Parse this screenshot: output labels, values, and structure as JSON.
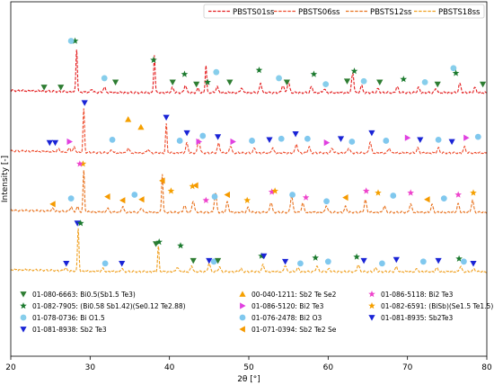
{
  "chart_data": {
    "type": "line",
    "xlabel": "2θ [°]",
    "ylabel": "Intensity [-]",
    "xlim": [
      20,
      80
    ],
    "xticks": [
      20,
      30,
      40,
      50,
      60,
      70,
      80
    ],
    "ytick_labels_shown": false,
    "grid": false,
    "legend_placement": "top-right",
    "phase_legend_placement": "bottom",
    "series": [
      {
        "name": "PBSTS01ss",
        "color": "#e31a1c",
        "peaks": [
          {
            "x": 28.3,
            "h": 0.85
          },
          {
            "x": 30.2,
            "h": 0.06
          },
          {
            "x": 31.8,
            "h": 0.1
          },
          {
            "x": 38.1,
            "h": 0.75
          },
          {
            "x": 40.4,
            "h": 0.1
          },
          {
            "x": 42.0,
            "h": 0.15
          },
          {
            "x": 43.6,
            "h": 0.08
          },
          {
            "x": 44.6,
            "h": 0.55
          },
          {
            "x": 46.0,
            "h": 0.12
          },
          {
            "x": 49.1,
            "h": 0.1
          },
          {
            "x": 51.5,
            "h": 0.18
          },
          {
            "x": 54.3,
            "h": 0.15
          },
          {
            "x": 55.0,
            "h": 0.22
          },
          {
            "x": 57.9,
            "h": 0.12
          },
          {
            "x": 59.5,
            "h": 0.08
          },
          {
            "x": 63.1,
            "h": 0.38
          },
          {
            "x": 64.2,
            "h": 0.14
          },
          {
            "x": 66.3,
            "h": 0.08
          },
          {
            "x": 68.7,
            "h": 0.12
          },
          {
            "x": 71.4,
            "h": 0.1
          },
          {
            "x": 73.6,
            "h": 0.08
          },
          {
            "x": 76.6,
            "h": 0.18
          },
          {
            "x": 78.5,
            "h": 0.1
          }
        ]
      },
      {
        "name": "PBSTS06ss",
        "color": "#ee4a2b",
        "peaks": [
          {
            "x": 26.0,
            "h": 0.06
          },
          {
            "x": 27.4,
            "h": 0.08
          },
          {
            "x": 28.0,
            "h": 0.1
          },
          {
            "x": 29.2,
            "h": 0.9
          },
          {
            "x": 32.7,
            "h": 0.06
          },
          {
            "x": 34.8,
            "h": 0.1
          },
          {
            "x": 37.3,
            "h": 0.08
          },
          {
            "x": 39.6,
            "h": 0.6
          },
          {
            "x": 42.2,
            "h": 0.2
          },
          {
            "x": 43.7,
            "h": 0.28
          },
          {
            "x": 46.2,
            "h": 0.2
          },
          {
            "x": 47.7,
            "h": 0.15
          },
          {
            "x": 50.7,
            "h": 0.1
          },
          {
            "x": 53.0,
            "h": 0.1
          },
          {
            "x": 56.0,
            "h": 0.18
          },
          {
            "x": 57.6,
            "h": 0.12
          },
          {
            "x": 60.5,
            "h": 0.1
          },
          {
            "x": 62.6,
            "h": 0.1
          },
          {
            "x": 65.3,
            "h": 0.22
          },
          {
            "x": 67.7,
            "h": 0.1
          },
          {
            "x": 71.3,
            "h": 0.1
          },
          {
            "x": 73.9,
            "h": 0.1
          },
          {
            "x": 77.2,
            "h": 0.12
          }
        ]
      },
      {
        "name": "PBSTS12ss",
        "color": "#e8711c",
        "peaks": [
          {
            "x": 25.3,
            "h": 0.06
          },
          {
            "x": 27.6,
            "h": 0.1
          },
          {
            "x": 28.4,
            "h": 0.1
          },
          {
            "x": 29.2,
            "h": 0.88
          },
          {
            "x": 32.2,
            "h": 0.08
          },
          {
            "x": 34.1,
            "h": 0.12
          },
          {
            "x": 36.5,
            "h": 0.1
          },
          {
            "x": 39.1,
            "h": 0.82
          },
          {
            "x": 41.9,
            "h": 0.15
          },
          {
            "x": 43.0,
            "h": 0.25
          },
          {
            "x": 45.8,
            "h": 0.42
          },
          {
            "x": 47.3,
            "h": 0.22
          },
          {
            "x": 49.9,
            "h": 0.1
          },
          {
            "x": 52.8,
            "h": 0.22
          },
          {
            "x": 55.4,
            "h": 0.36
          },
          {
            "x": 56.8,
            "h": 0.2
          },
          {
            "x": 59.8,
            "h": 0.14
          },
          {
            "x": 62.2,
            "h": 0.12
          },
          {
            "x": 64.7,
            "h": 0.26
          },
          {
            "x": 67.1,
            "h": 0.14
          },
          {
            "x": 70.4,
            "h": 0.18
          },
          {
            "x": 73.1,
            "h": 0.16
          },
          {
            "x": 76.4,
            "h": 0.18
          },
          {
            "x": 78.2,
            "h": 0.25
          }
        ]
      },
      {
        "name": "PBSTS18ss",
        "color": "#f0a020",
        "peaks": [
          {
            "x": 26.9,
            "h": 0.06
          },
          {
            "x": 28.5,
            "h": 0.92
          },
          {
            "x": 31.6,
            "h": 0.06
          },
          {
            "x": 34.0,
            "h": 0.06
          },
          {
            "x": 38.6,
            "h": 0.55
          },
          {
            "x": 41.0,
            "h": 0.1
          },
          {
            "x": 42.8,
            "h": 0.12
          },
          {
            "x": 45.0,
            "h": 0.18
          },
          {
            "x": 46.3,
            "h": 0.1
          },
          {
            "x": 49.0,
            "h": 0.06
          },
          {
            "x": 51.8,
            "h": 0.15
          },
          {
            "x": 54.6,
            "h": 0.14
          },
          {
            "x": 56.2,
            "h": 0.08
          },
          {
            "x": 58.6,
            "h": 0.12
          },
          {
            "x": 60.1,
            "h": 0.06
          },
          {
            "x": 63.8,
            "h": 0.15
          },
          {
            "x": 66.0,
            "h": 0.08
          },
          {
            "x": 68.6,
            "h": 0.1
          },
          {
            "x": 71.2,
            "h": 0.06
          },
          {
            "x": 73.7,
            "h": 0.08
          },
          {
            "x": 76.7,
            "h": 0.12
          },
          {
            "x": 78.4,
            "h": 0.06
          }
        ]
      }
    ],
    "phases": [
      {
        "code": "01-080-6663: Bi0.5(Sb1.5 Te3)",
        "marker": "triangle-down",
        "color": "#2e7d32"
      },
      {
        "code": "01-082-7905: (Bi0.58 Sb1.42)(Se0.12 Te2.88)",
        "marker": "star",
        "color": "#1b7a2e"
      },
      {
        "code": "01-078-0736: Bi O1.5",
        "marker": "circle",
        "color": "#87ceeb"
      },
      {
        "code": "01-081-8938: Sb2 Te3",
        "marker": "triangle-down",
        "color": "#1a24d6"
      },
      {
        "code": "00-040-1211: Sb2 Te Se2",
        "marker": "triangle-up",
        "color": "#f5a000"
      },
      {
        "code": "01-086-5120: Bi2 Te3",
        "marker": "triangle-right",
        "color": "#e040e0"
      },
      {
        "code": "01-076-2478: Bi2 O3",
        "marker": "circle",
        "color": "#80c8ee"
      },
      {
        "code": "01-071-0394: Sb2 Te2 Se",
        "marker": "triangle-left",
        "color": "#f59a00"
      },
      {
        "code": "01-086-5118: Bi2 Te3",
        "marker": "star",
        "color": "#ee44cc"
      },
      {
        "code": "01-082-6591: (BiSb)(Se1.5 Te1.5)",
        "marker": "star",
        "color": "#f5a000"
      },
      {
        "code": "01-081-8935: Sb2Te3",
        "marker": "triangle-down",
        "color": "#1a24d6"
      }
    ],
    "markers": [
      [
        {
          "p": 0,
          "x": 24.2,
          "h": 0.0
        },
        {
          "p": 0,
          "x": 26.3,
          "h": 0.0
        },
        {
          "p": 1,
          "x": 28.1,
          "h": 0.92
        },
        {
          "p": 2,
          "x": 27.6,
          "h": 0.92
        },
        {
          "p": 2,
          "x": 31.8,
          "h": 0.18
        },
        {
          "p": 0,
          "x": 33.2,
          "h": 0.1
        },
        {
          "p": 1,
          "x": 38.0,
          "h": 0.54
        },
        {
          "p": 0,
          "x": 40.4,
          "h": 0.1
        },
        {
          "p": 1,
          "x": 41.9,
          "h": 0.26
        },
        {
          "p": 0,
          "x": 43.4,
          "h": 0.06
        },
        {
          "p": 1,
          "x": 44.8,
          "h": 0.1
        },
        {
          "p": 2,
          "x": 45.9,
          "h": 0.3
        },
        {
          "p": 0,
          "x": 47.6,
          "h": 0.1
        },
        {
          "p": 1,
          "x": 51.3,
          "h": 0.34
        },
        {
          "p": 2,
          "x": 53.8,
          "h": 0.18
        },
        {
          "p": 0,
          "x": 54.8,
          "h": 0.1
        },
        {
          "p": 1,
          "x": 58.2,
          "h": 0.26
        },
        {
          "p": 2,
          "x": 59.7,
          "h": 0.06
        },
        {
          "p": 0,
          "x": 62.4,
          "h": 0.12
        },
        {
          "p": 1,
          "x": 63.3,
          "h": 0.32
        },
        {
          "p": 2,
          "x": 64.5,
          "h": 0.12
        },
        {
          "p": 0,
          "x": 66.5,
          "h": 0.1
        },
        {
          "p": 1,
          "x": 69.5,
          "h": 0.16
        },
        {
          "p": 2,
          "x": 72.2,
          "h": 0.1
        },
        {
          "p": 0,
          "x": 73.8,
          "h": 0.06
        },
        {
          "p": 2,
          "x": 75.8,
          "h": 0.38
        },
        {
          "p": 1,
          "x": 76.1,
          "h": 0.28
        },
        {
          "p": 0,
          "x": 79.5,
          "h": 0.06
        }
      ],
      [
        {
          "p": 3,
          "x": 24.9,
          "h": 0.1
        },
        {
          "p": 3,
          "x": 25.6,
          "h": 0.1
        },
        {
          "p": 5,
          "x": 27.4,
          "h": 0.12
        },
        {
          "p": 3,
          "x": 29.3,
          "h": 0.92
        },
        {
          "p": 6,
          "x": 32.8,
          "h": 0.16
        },
        {
          "p": 4,
          "x": 34.8,
          "h": 0.58
        },
        {
          "p": 4,
          "x": 36.4,
          "h": 0.42
        },
        {
          "p": 3,
          "x": 39.6,
          "h": 0.62
        },
        {
          "p": 6,
          "x": 41.3,
          "h": 0.14
        },
        {
          "p": 3,
          "x": 42.2,
          "h": 0.3
        },
        {
          "p": 5,
          "x": 43.7,
          "h": 0.12
        },
        {
          "p": 6,
          "x": 44.2,
          "h": 0.24
        },
        {
          "p": 3,
          "x": 46.1,
          "h": 0.22
        },
        {
          "p": 5,
          "x": 48.0,
          "h": 0.12
        },
        {
          "p": 6,
          "x": 50.4,
          "h": 0.14
        },
        {
          "p": 3,
          "x": 52.6,
          "h": 0.16
        },
        {
          "p": 6,
          "x": 54.1,
          "h": 0.18
        },
        {
          "p": 3,
          "x": 55.9,
          "h": 0.28
        },
        {
          "p": 6,
          "x": 57.4,
          "h": 0.18
        },
        {
          "p": 5,
          "x": 59.8,
          "h": 0.1
        },
        {
          "p": 3,
          "x": 61.6,
          "h": 0.18
        },
        {
          "p": 6,
          "x": 63.0,
          "h": 0.12
        },
        {
          "p": 3,
          "x": 65.5,
          "h": 0.3
        },
        {
          "p": 6,
          "x": 67.3,
          "h": 0.14
        },
        {
          "p": 5,
          "x": 70.0,
          "h": 0.2
        },
        {
          "p": 3,
          "x": 71.6,
          "h": 0.16
        },
        {
          "p": 6,
          "x": 73.9,
          "h": 0.16
        },
        {
          "p": 3,
          "x": 75.6,
          "h": 0.12
        },
        {
          "p": 5,
          "x": 77.4,
          "h": 0.2
        },
        {
          "p": 6,
          "x": 78.9,
          "h": 0.22
        }
      ],
      [
        {
          "p": 7,
          "x": 25.3,
          "h": 0.06
        },
        {
          "p": 6,
          "x": 27.6,
          "h": 0.18
        },
        {
          "p": 9,
          "x": 29.1,
          "h": 0.92
        },
        {
          "p": 8,
          "x": 28.7,
          "h": 0.92
        },
        {
          "p": 7,
          "x": 32.2,
          "h": 0.22
        },
        {
          "p": 7,
          "x": 34.1,
          "h": 0.14
        },
        {
          "p": 6,
          "x": 35.6,
          "h": 0.26
        },
        {
          "p": 7,
          "x": 36.5,
          "h": 0.16
        },
        {
          "p": 7,
          "x": 39.1,
          "h": 0.56
        },
        {
          "p": 9,
          "x": 40.2,
          "h": 0.34
        },
        {
          "p": 9,
          "x": 42.9,
          "h": 0.44
        },
        {
          "p": 7,
          "x": 43.3,
          "h": 0.46
        },
        {
          "p": 8,
          "x": 44.6,
          "h": 0.14
        },
        {
          "p": 6,
          "x": 45.7,
          "h": 0.22
        },
        {
          "p": 7,
          "x": 47.3,
          "h": 0.26
        },
        {
          "p": 9,
          "x": 49.8,
          "h": 0.14
        },
        {
          "p": 8,
          "x": 52.9,
          "h": 0.32
        },
        {
          "p": 9,
          "x": 53.3,
          "h": 0.34
        },
        {
          "p": 6,
          "x": 55.5,
          "h": 0.26
        },
        {
          "p": 8,
          "x": 57.2,
          "h": 0.2
        },
        {
          "p": 6,
          "x": 59.8,
          "h": 0.12
        },
        {
          "p": 7,
          "x": 62.2,
          "h": 0.2
        },
        {
          "p": 8,
          "x": 64.8,
          "h": 0.34
        },
        {
          "p": 9,
          "x": 66.3,
          "h": 0.3
        },
        {
          "p": 6,
          "x": 68.2,
          "h": 0.24
        },
        {
          "p": 8,
          "x": 70.4,
          "h": 0.3
        },
        {
          "p": 7,
          "x": 72.5,
          "h": 0.16
        },
        {
          "p": 6,
          "x": 74.6,
          "h": 0.18
        },
        {
          "p": 8,
          "x": 76.4,
          "h": 0.26
        },
        {
          "p": 9,
          "x": 78.3,
          "h": 0.3
        }
      ],
      [
        {
          "p": 10,
          "x": 27.0,
          "h": 0.06
        },
        {
          "p": 10,
          "x": 28.4,
          "h": 0.92
        },
        {
          "p": 1,
          "x": 28.8,
          "h": 0.92
        },
        {
          "p": 6,
          "x": 31.9,
          "h": 0.06
        },
        {
          "p": 10,
          "x": 34.0,
          "h": 0.06
        },
        {
          "p": 0,
          "x": 38.3,
          "h": 0.48
        },
        {
          "p": 1,
          "x": 38.7,
          "h": 0.52
        },
        {
          "p": 1,
          "x": 41.4,
          "h": 0.44
        },
        {
          "p": 0,
          "x": 43.0,
          "h": 0.12
        },
        {
          "p": 10,
          "x": 45.0,
          "h": 0.12
        },
        {
          "p": 6,
          "x": 45.6,
          "h": 0.1
        },
        {
          "p": 0,
          "x": 46.1,
          "h": 0.12
        },
        {
          "p": 1,
          "x": 51.6,
          "h": 0.22
        },
        {
          "p": 10,
          "x": 51.9,
          "h": 0.22
        },
        {
          "p": 10,
          "x": 54.6,
          "h": 0.1
        },
        {
          "p": 6,
          "x": 56.5,
          "h": 0.06
        },
        {
          "p": 1,
          "x": 58.4,
          "h": 0.18
        },
        {
          "p": 6,
          "x": 60.0,
          "h": 0.1
        },
        {
          "p": 1,
          "x": 63.6,
          "h": 0.2
        },
        {
          "p": 10,
          "x": 64.5,
          "h": 0.12
        },
        {
          "p": 6,
          "x": 66.8,
          "h": 0.06
        },
        {
          "p": 10,
          "x": 68.6,
          "h": 0.14
        },
        {
          "p": 6,
          "x": 72.0,
          "h": 0.1
        },
        {
          "p": 10,
          "x": 73.9,
          "h": 0.12
        },
        {
          "p": 1,
          "x": 76.5,
          "h": 0.16
        },
        {
          "p": 6,
          "x": 77.1,
          "h": 0.1
        },
        {
          "p": 10,
          "x": 78.3,
          "h": 0.06
        }
      ]
    ]
  }
}
